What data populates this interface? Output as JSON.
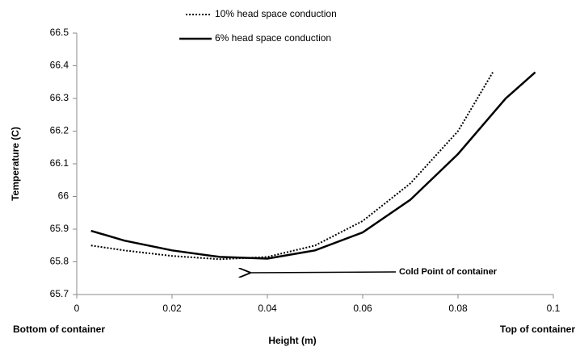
{
  "chart_data": {
    "type": "line",
    "x_label": "Height (m)",
    "y_label": "Temperature (C)",
    "annotations": [
      "Cold Point of container",
      "Bottom of container",
      "Top of container"
    ],
    "xlim": [
      0,
      0.1
    ],
    "xticks": [
      0,
      0.02,
      0.04,
      0.06,
      0.08,
      0.1
    ],
    "ylim": [
      65.7,
      66.5
    ],
    "yticks": [
      65.7,
      65.8,
      65.9,
      66,
      66.1,
      66.2,
      66.3,
      66.4,
      66.5
    ],
    "grid": false,
    "series": [
      {
        "name": "10% head space conduction",
        "color": "#000000",
        "dash": "dotted",
        "x": [
          0.003,
          0.01,
          0.02,
          0.03,
          0.04,
          0.05,
          0.06,
          0.07,
          0.08,
          0.0873
        ],
        "values": [
          65.85,
          65.835,
          65.818,
          65.808,
          65.815,
          65.85,
          65.925,
          66.04,
          66.2,
          66.38
        ]
      },
      {
        "name": "6% head space conduction",
        "color": "#000000",
        "dash": "solid",
        "x": [
          0.003,
          0.01,
          0.02,
          0.03,
          0.04,
          0.05,
          0.06,
          0.07,
          0.08,
          0.09,
          0.0962
        ],
        "values": [
          65.895,
          65.865,
          65.835,
          65.815,
          65.81,
          65.835,
          65.89,
          65.99,
          66.13,
          66.3,
          66.38
        ]
      }
    ]
  }
}
